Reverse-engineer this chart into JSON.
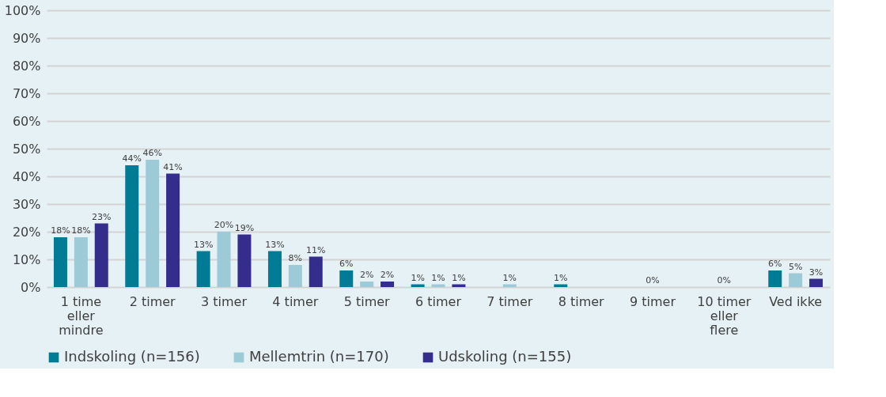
{
  "chart_data": {
    "type": "bar",
    "categories": [
      "1 time eller mindre",
      "2 timer",
      "3 timer",
      "4 timer",
      "5 timer",
      "6 timer",
      "7 timer",
      "8 timer",
      "9 timer",
      "10 timer eller flere",
      "Ved ikke"
    ],
    "series": [
      {
        "name": "Indskoling (n=156)",
        "color": "#007b96",
        "values": [
          18,
          44,
          13,
          13,
          6,
          1,
          0,
          1,
          0,
          0,
          6
        ],
        "value_labels": [
          "18%",
          "44%",
          "13%",
          "13%",
          "6%",
          "1%",
          null,
          "1%",
          null,
          null,
          "6%"
        ]
      },
      {
        "name": "Mellemtrin (n=170)",
        "color": "#9ccbd7",
        "values": [
          18,
          46,
          20,
          8,
          2,
          1,
          1,
          0,
          0,
          0,
          5
        ],
        "value_labels": [
          "18%",
          "46%",
          "20%",
          "8%",
          "2%",
          "1%",
          "1%",
          null,
          "0%",
          "0%",
          "5%"
        ]
      },
      {
        "name": "Udskoling (n=155)",
        "color": "#352d8c",
        "values": [
          23,
          41,
          19,
          11,
          2,
          1,
          0,
          0,
          0,
          0,
          3
        ],
        "value_labels": [
          "23%",
          "41%",
          "19%",
          "11%",
          "2%",
          "1%",
          null,
          null,
          null,
          null,
          "3%"
        ]
      }
    ],
    "ylim": [
      0,
      100
    ],
    "yticks": [
      {
        "value": 0,
        "label": "0%"
      },
      {
        "value": 10,
        "label": "10%"
      },
      {
        "value": 20,
        "label": "20%"
      },
      {
        "value": 30,
        "label": "30%"
      },
      {
        "value": 40,
        "label": "40%"
      },
      {
        "value": 50,
        "label": "50%"
      },
      {
        "value": 60,
        "label": "60%"
      },
      {
        "value": 70,
        "label": "70%"
      },
      {
        "value": 80,
        "label": "80%"
      },
      {
        "value": 90,
        "label": "90%"
      },
      {
        "value": 100,
        "label": "100%"
      }
    ],
    "grid": "y",
    "legend": "bottom"
  }
}
